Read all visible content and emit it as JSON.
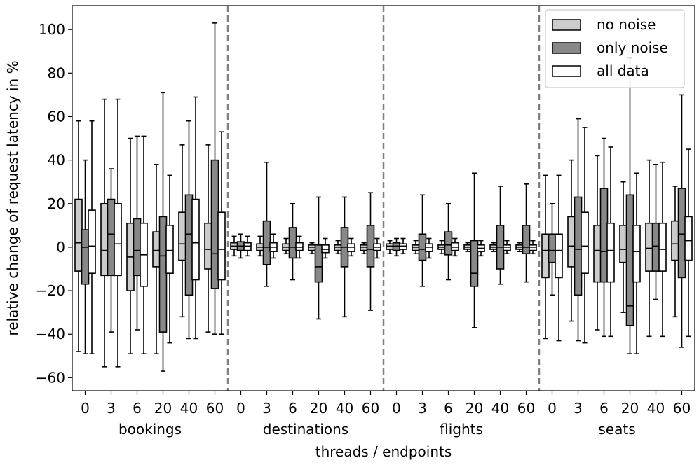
{
  "chart_data": {
    "type": "box",
    "xlabel": "threads / endpoints",
    "ylabel": "relative change of request latency in %",
    "ylim": [
      -66,
      111
    ],
    "yticks": [
      -60,
      -40,
      -20,
      0,
      20,
      40,
      60,
      80,
      100
    ],
    "grid": false,
    "legend_position": "top-right",
    "groups": [
      "bookings",
      "destinations",
      "flights",
      "seats"
    ],
    "threads": [
      "0",
      "3",
      "6",
      "20",
      "40",
      "60"
    ],
    "series": [
      {
        "name": "no noise",
        "color": "#cccccc"
      },
      {
        "name": "only noise",
        "color": "#888888"
      },
      {
        "name": "all data",
        "color": "#ffffff"
      }
    ],
    "boxes": [
      {
        "group": "bookings",
        "threads": "0",
        "no_noise": {
          "whislo": -48,
          "q1": -11,
          "med": 2,
          "q3": 22,
          "whishi": 58
        },
        "only_noise": {
          "whislo": -49,
          "q1": -17,
          "med": 0,
          "q3": 8,
          "whishi": 40
        },
        "all_data": {
          "whislo": -49,
          "q1": -12,
          "med": 0.5,
          "q3": 17,
          "whishi": 58
        }
      },
      {
        "group": "bookings",
        "threads": "3",
        "no_noise": {
          "whislo": -55,
          "q1": -13,
          "med": -1.5,
          "q3": 20,
          "whishi": 68
        },
        "only_noise": {
          "whislo": -39,
          "q1": -13,
          "med": 6,
          "q3": 22,
          "whishi": 36
        },
        "all_data": {
          "whislo": -55,
          "q1": -13,
          "med": 1.5,
          "q3": 20,
          "whishi": 68
        }
      },
      {
        "group": "bookings",
        "threads": "6",
        "no_noise": {
          "whislo": -49,
          "q1": -20,
          "med": -4.5,
          "q3": 11,
          "whishi": 50
        },
        "only_noise": {
          "whislo": -38,
          "q1": -13,
          "med": -1.5,
          "q3": 13,
          "whishi": 51
        },
        "all_data": {
          "whislo": -49,
          "q1": -18,
          "med": -3.5,
          "q3": 11,
          "whishi": 51
        }
      },
      {
        "group": "bookings",
        "threads": "20",
        "no_noise": {
          "whislo": -49,
          "q1": -9,
          "med": -1.5,
          "q3": 7,
          "whishi": 38
        },
        "only_noise": {
          "whislo": -57,
          "q1": -39,
          "med": -4,
          "q3": 14,
          "whishi": 71
        },
        "all_data": {
          "whislo": -44,
          "q1": -12,
          "med": -1.5,
          "q3": 10,
          "whishi": 33
        }
      },
      {
        "group": "bookings",
        "threads": "40",
        "no_noise": {
          "whislo": -32,
          "q1": -6,
          "med": 1.5,
          "q3": 16,
          "whishi": 47
        },
        "only_noise": {
          "whislo": -42,
          "q1": -22,
          "med": 6,
          "q3": 24,
          "whishi": 58
        },
        "all_data": {
          "whislo": -42,
          "q1": -15,
          "med": 2,
          "q3": 22,
          "whishi": 69
        }
      },
      {
        "group": "bookings",
        "threads": "60",
        "no_noise": {
          "whislo": -39,
          "q1": -10,
          "med": -1,
          "q3": 11,
          "whishi": 47
        },
        "only_noise": {
          "whislo": -40,
          "q1": -19,
          "med": -3,
          "q3": 40,
          "whishi": 103
        },
        "all_data": {
          "whislo": -40,
          "q1": -15,
          "med": -1,
          "q3": 16,
          "whishi": 53
        }
      },
      {
        "group": "destinations",
        "threads": "0",
        "no_noise": {
          "whislo": -4,
          "q1": -1,
          "med": 0.5,
          "q3": 2,
          "whishi": 5
        },
        "only_noise": {
          "whislo": -5,
          "q1": -1.5,
          "med": 0.5,
          "q3": 2.5,
          "whishi": 6
        },
        "all_data": {
          "whislo": -4,
          "q1": -1.5,
          "med": 0.5,
          "q3": 2,
          "whishi": 5
        }
      },
      {
        "group": "destinations",
        "threads": "3",
        "no_noise": {
          "whislo": -4,
          "q1": -1.5,
          "med": 0,
          "q3": 1.5,
          "whishi": 5
        },
        "only_noise": {
          "whislo": -18,
          "q1": -8,
          "med": 0,
          "q3": 12,
          "whishi": 39
        },
        "all_data": {
          "whislo": -5,
          "q1": -2,
          "med": 0,
          "q3": 2,
          "whishi": 6
        }
      },
      {
        "group": "destinations",
        "threads": "6",
        "no_noise": {
          "whislo": -3,
          "q1": -1.5,
          "med": 0,
          "q3": 1.5,
          "whishi": 4
        },
        "only_noise": {
          "whislo": -15,
          "q1": -5,
          "med": 0,
          "q3": 9,
          "whishi": 20
        },
        "all_data": {
          "whislo": -5,
          "q1": -1.5,
          "med": 0,
          "q3": 2,
          "whishi": 5
        }
      },
      {
        "group": "destinations",
        "threads": "20",
        "no_noise": {
          "whislo": -3,
          "q1": -1.5,
          "med": 0,
          "q3": 1,
          "whishi": 2
        },
        "only_noise": {
          "whislo": -33,
          "q1": -16,
          "med": -9,
          "q3": 1,
          "whishi": 23
        },
        "all_data": {
          "whislo": -5,
          "q1": -2.5,
          "med": -1,
          "q3": 1,
          "whishi": 4
        }
      },
      {
        "group": "destinations",
        "threads": "40",
        "no_noise": {
          "whislo": -3,
          "q1": -1.5,
          "med": 0,
          "q3": 1,
          "whishi": 3
        },
        "only_noise": {
          "whislo": -32,
          "q1": -9,
          "med": 0,
          "q3": 9,
          "whishi": 23
        },
        "all_data": {
          "whislo": -4,
          "q1": -2,
          "med": 0,
          "q3": 1.5,
          "whishi": 4
        }
      },
      {
        "group": "destinations",
        "threads": "60",
        "no_noise": {
          "whislo": -3,
          "q1": -1.5,
          "med": 0,
          "q3": 1,
          "whishi": 2
        },
        "only_noise": {
          "whislo": -29,
          "q1": -9,
          "med": -1,
          "q3": 10,
          "whishi": 25
        },
        "all_data": {
          "whislo": -5,
          "q1": -1.5,
          "med": 0,
          "q3": 1.5,
          "whishi": 4
        }
      },
      {
        "group": "flights",
        "threads": "0",
        "no_noise": {
          "whislo": -3,
          "q1": -1,
          "med": 0.5,
          "q3": 1.5,
          "whishi": 3
        },
        "only_noise": {
          "whislo": -4,
          "q1": -1.5,
          "med": 0.5,
          "q3": 2,
          "whishi": 4
        },
        "all_data": {
          "whislo": -3,
          "q1": -1,
          "med": 0.5,
          "q3": 1.5,
          "whishi": 4
        }
      },
      {
        "group": "flights",
        "threads": "3",
        "no_noise": {
          "whislo": -3,
          "q1": -1.5,
          "med": 0,
          "q3": 1,
          "whishi": 3
        },
        "only_noise": {
          "whislo": -18,
          "q1": -6,
          "med": -1,
          "q3": 6,
          "whishi": 24
        },
        "all_data": {
          "whislo": -5,
          "q1": -2,
          "med": 0,
          "q3": 1.5,
          "whishi": 4
        }
      },
      {
        "group": "flights",
        "threads": "6",
        "no_noise": {
          "whislo": -3,
          "q1": -1,
          "med": 0,
          "q3": 1,
          "whishi": 3
        },
        "only_noise": {
          "whislo": -15,
          "q1": -3.5,
          "med": 1,
          "q3": 7,
          "whishi": 20
        },
        "all_data": {
          "whislo": -4,
          "q1": -1.5,
          "med": 0,
          "q3": 2,
          "whishi": 4
        }
      },
      {
        "group": "flights",
        "threads": "20",
        "no_noise": {
          "whislo": -2,
          "q1": -1,
          "med": 0,
          "q3": 1,
          "whishi": 2
        },
        "only_noise": {
          "whislo": -37,
          "q1": -18,
          "med": -12,
          "q3": 3,
          "whishi": 34
        },
        "all_data": {
          "whislo": -4,
          "q1": -2,
          "med": -0.5,
          "q3": 1,
          "whishi": 3
        }
      },
      {
        "group": "flights",
        "threads": "40",
        "no_noise": {
          "whislo": -2,
          "q1": -1,
          "med": 0,
          "q3": 1,
          "whishi": 2
        },
        "only_noise": {
          "whislo": -17,
          "q1": -10,
          "med": 0,
          "q3": 10,
          "whishi": 28
        },
        "all_data": {
          "whislo": -3,
          "q1": -1.5,
          "med": 0,
          "q3": 1,
          "whishi": 3
        }
      },
      {
        "group": "flights",
        "threads": "60",
        "no_noise": {
          "whislo": -2,
          "q1": -1,
          "med": 0,
          "q3": 1,
          "whishi": 2
        },
        "only_noise": {
          "whislo": -16,
          "q1": -3,
          "med": 0,
          "q3": 10,
          "whishi": 29
        },
        "all_data": {
          "whislo": -3,
          "q1": -1.5,
          "med": 0,
          "q3": 1,
          "whishi": 3
        }
      },
      {
        "group": "seats",
        "threads": "0",
        "no_noise": {
          "whislo": -42,
          "q1": -14,
          "med": -1.5,
          "q3": 6,
          "whishi": 33
        },
        "only_noise": {
          "whislo": -22,
          "q1": -7,
          "med": -1.5,
          "q3": 6,
          "whishi": 20
        },
        "all_data": {
          "whislo": -43,
          "q1": -14,
          "med": -1.5,
          "q3": 6,
          "whishi": 33
        }
      },
      {
        "group": "seats",
        "threads": "3",
        "no_noise": {
          "whislo": -34,
          "q1": -9,
          "med": 0.5,
          "q3": 14,
          "whishi": 40
        },
        "only_noise": {
          "whislo": -43,
          "q1": -22,
          "med": -1,
          "q3": 23,
          "whishi": 59
        },
        "all_data": {
          "whislo": -44,
          "q1": -12,
          "med": 0.5,
          "q3": 16,
          "whishi": 55
        }
      },
      {
        "group": "seats",
        "threads": "6",
        "no_noise": {
          "whislo": -38,
          "q1": -16,
          "med": -1.5,
          "q3": 10,
          "whishi": 42
        },
        "only_noise": {
          "whislo": -41,
          "q1": -16,
          "med": -2,
          "q3": 27,
          "whishi": 50
        },
        "all_data": {
          "whislo": -41,
          "q1": -16,
          "med": -1.5,
          "q3": 11,
          "whishi": 46
        }
      },
      {
        "group": "seats",
        "threads": "20",
        "no_noise": {
          "whislo": -30,
          "q1": -7,
          "med": -1,
          "q3": 10,
          "whishi": 30
        },
        "only_noise": {
          "whislo": -49,
          "q1": -36,
          "med": -27,
          "q3": 24,
          "whishi": 87
        },
        "all_data": {
          "whislo": -49,
          "q1": -16,
          "med": -2,
          "q3": 10,
          "whishi": 34
        }
      },
      {
        "group": "seats",
        "threads": "40",
        "no_noise": {
          "whislo": -41,
          "q1": -11,
          "med": -0.5,
          "q3": 11,
          "whishi": 40
        },
        "only_noise": {
          "whislo": -24,
          "q1": -11,
          "med": 0.5,
          "q3": 11,
          "whishi": 38
        },
        "all_data": {
          "whislo": -41,
          "q1": -11,
          "med": -1,
          "q3": 11,
          "whishi": 39
        }
      },
      {
        "group": "seats",
        "threads": "60",
        "no_noise": {
          "whislo": -32,
          "q1": -6,
          "med": 1.5,
          "q3": 12,
          "whishi": 28
        },
        "only_noise": {
          "whislo": -46,
          "q1": -14,
          "med": 6,
          "q3": 27,
          "whishi": 70
        },
        "all_data": {
          "whislo": -41,
          "q1": -6,
          "med": 3,
          "q3": 14,
          "whishi": 45
        }
      }
    ]
  }
}
